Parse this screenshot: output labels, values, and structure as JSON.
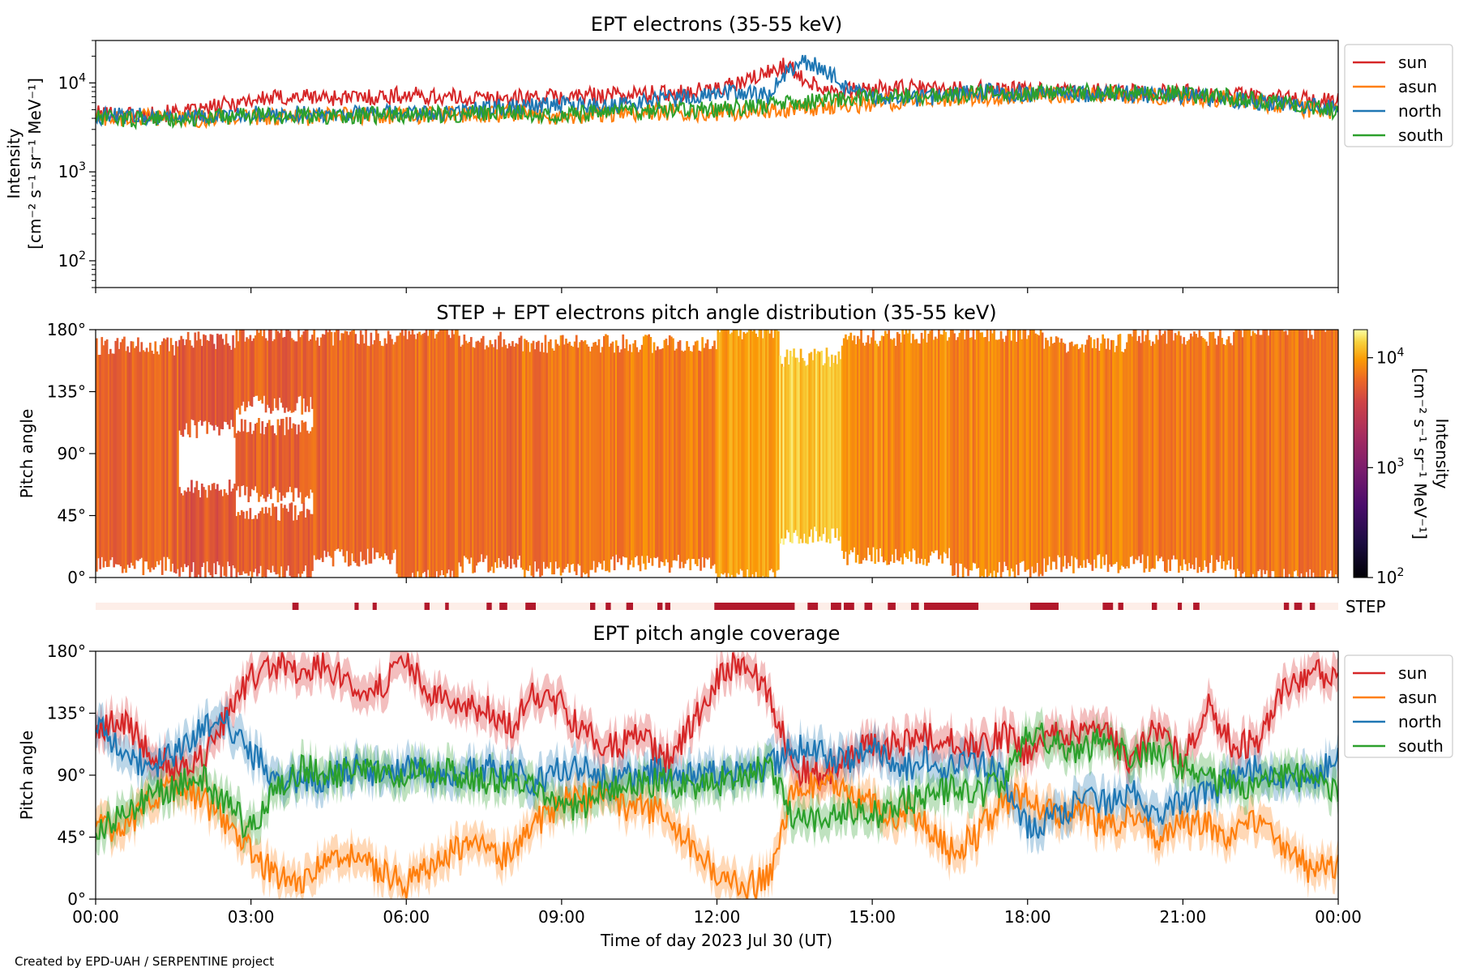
{
  "footer": {
    "credit": "Created by EPD-UAH / SERPENTINE project"
  },
  "colors": {
    "sun": "#d62728",
    "asun": "#ff7f0e",
    "north": "#1f77b4",
    "south": "#2ca02c",
    "step_bar": "#b2182b",
    "step_bg": "#fdeee8"
  },
  "chart_data": [
    {
      "type": "line",
      "title": "EPT electrons (35-55 keV)",
      "ylabel": "Intensity",
      "ylabel_units": "[cm⁻² s⁻¹ sr⁻¹ MeV⁻¹]",
      "yscale": "log",
      "ylim": [
        50,
        30000
      ],
      "y_ticks": [
        {
          "value": 100,
          "base": "10",
          "exp": "2"
        },
        {
          "value": 1000,
          "base": "10",
          "exp": "3"
        },
        {
          "value": 10000,
          "base": "10",
          "exp": "4"
        }
      ],
      "xlim_hours": [
        0,
        24
      ],
      "legend_position": "outside-right-top",
      "x_hours": [
        0,
        1,
        2,
        3,
        4,
        5,
        6,
        7,
        8,
        9,
        10,
        11,
        12,
        12.5,
        13,
        13.3,
        13.6,
        14,
        14.5,
        15,
        16,
        17,
        18,
        19,
        20,
        21,
        22,
        23,
        24
      ],
      "series": [
        {
          "name": "sun",
          "color_key": "sun",
          "values": [
            4500,
            4400,
            4800,
            6500,
            7000,
            6800,
            7300,
            6800,
            6700,
            7000,
            7400,
            7600,
            8500,
            10000,
            13000,
            16000,
            12000,
            9000,
            8000,
            8500,
            8700,
            8500,
            8200,
            8000,
            7800,
            7800,
            7200,
            6800,
            6200
          ]
        },
        {
          "name": "asun",
          "color_key": "asun",
          "values": [
            4000,
            4100,
            3900,
            4200,
            4100,
            4300,
            4300,
            4400,
            4500,
            4200,
            4500,
            4700,
            4600,
            4700,
            5000,
            5100,
            5200,
            5300,
            5600,
            5800,
            6500,
            7000,
            7300,
            7500,
            7300,
            7000,
            6500,
            5500,
            4500
          ]
        },
        {
          "name": "north",
          "color_key": "north",
          "values": [
            4200,
            4300,
            4000,
            4400,
            4500,
            4600,
            4500,
            4700,
            5500,
            5700,
            5500,
            6500,
            7500,
            8000,
            7000,
            12000,
            17000,
            15000,
            8500,
            6500,
            6800,
            8000,
            7500,
            7500,
            7500,
            7300,
            6500,
            5800,
            5000
          ]
        },
        {
          "name": "south",
          "color_key": "south",
          "values": [
            4000,
            3900,
            4100,
            4300,
            4200,
            4300,
            4400,
            4500,
            4600,
            4500,
            4700,
            4800,
            5000,
            5300,
            5500,
            5800,
            5900,
            6200,
            6800,
            6800,
            7200,
            7500,
            7800,
            7800,
            7800,
            7500,
            6800,
            6000,
            4800
          ]
        }
      ]
    },
    {
      "type": "heatmap",
      "title": "STEP + EPT electrons pitch angle distribution (35-55 keV)",
      "ylabel": "Pitch angle",
      "ylim": [
        0,
        180
      ],
      "y_ticks": [
        "0°",
        "45°",
        "90°",
        "135°",
        "180°"
      ],
      "y_tick_values": [
        0,
        45,
        90,
        135,
        180
      ],
      "colorbar": {
        "label": "Intensity",
        "label_units": "[cm⁻² s⁻¹ sr⁻¹ MeV⁻¹]",
        "scale": "log",
        "range": [
          100,
          18000
        ],
        "ticks": [
          {
            "value": 100,
            "base": "10",
            "exp": "2"
          },
          {
            "value": 1000,
            "base": "10",
            "exp": "3"
          },
          {
            "value": 10000,
            "base": "10",
            "exp": "4"
          }
        ],
        "colormap": "inferno"
      },
      "blocks": [
        {
          "start_hour": 0.0,
          "end_hour": 1.6,
          "base": 6000,
          "bands": [
            [
              8,
              168
            ]
          ]
        },
        {
          "start_hour": 1.6,
          "end_hour": 2.7,
          "base": 5200,
          "bands": [
            [
              5,
              65
            ],
            [
              108,
              172
            ]
          ]
        },
        {
          "start_hour": 2.7,
          "end_hour": 4.2,
          "base": 5800,
          "bands": [
            [
              60,
              110
            ],
            [
              125,
              178
            ],
            [
              2,
              48
            ]
          ]
        },
        {
          "start_hour": 4.2,
          "end_hour": 5.8,
          "base": 6000,
          "bands": [
            [
              15,
              175
            ]
          ]
        },
        {
          "start_hour": 5.8,
          "end_hour": 7.0,
          "base": 6500,
          "bands": [
            [
              0,
              180
            ]
          ]
        },
        {
          "start_hour": 7.0,
          "end_hour": 8.2,
          "base": 6500,
          "bands": [
            [
              10,
              172
            ]
          ]
        },
        {
          "start_hour": 8.2,
          "end_hour": 9.6,
          "base": 7000,
          "bands": [
            [
              5,
              170
            ]
          ]
        },
        {
          "start_hour": 9.6,
          "end_hour": 12.0,
          "base": 7500,
          "bands": [
            [
              10,
              170
            ]
          ]
        },
        {
          "start_hour": 12.0,
          "end_hour": 13.2,
          "base": 10000,
          "bands": [
            [
              0,
              180
            ]
          ]
        },
        {
          "start_hour": 13.2,
          "end_hour": 14.4,
          "base": 13000,
          "bands": [
            [
              30,
              160
            ]
          ]
        },
        {
          "start_hour": 14.4,
          "end_hour": 16.5,
          "base": 8500,
          "bands": [
            [
              15,
              175
            ]
          ]
        },
        {
          "start_hour": 16.5,
          "end_hour": 18.3,
          "base": 8000,
          "bands": [
            [
              5,
              178
            ]
          ]
        },
        {
          "start_hour": 18.3,
          "end_hour": 20.0,
          "base": 7800,
          "bands": [
            [
              10,
              170
            ]
          ]
        },
        {
          "start_hour": 20.0,
          "end_hour": 22.0,
          "base": 7500,
          "bands": [
            [
              10,
              175
            ]
          ]
        },
        {
          "start_hour": 22.0,
          "end_hour": 24.0,
          "base": 7000,
          "bands": [
            [
              0,
              180
            ]
          ]
        }
      ]
    },
    {
      "type": "bar",
      "label": "STEP",
      "description_of_marks": "STEP data availability intervals (hours of day)",
      "intervals_hours": [
        [
          3.8,
          3.92
        ],
        [
          5.0,
          5.08
        ],
        [
          5.35,
          5.43
        ],
        [
          6.35,
          6.45
        ],
        [
          6.75,
          6.82
        ],
        [
          7.55,
          7.65
        ],
        [
          7.8,
          7.95
        ],
        [
          8.3,
          8.5
        ],
        [
          9.55,
          9.65
        ],
        [
          9.85,
          9.95
        ],
        [
          10.25,
          10.38
        ],
        [
          10.85,
          10.95
        ],
        [
          11.0,
          11.1
        ],
        [
          11.95,
          12.6
        ],
        [
          12.35,
          13.5
        ],
        [
          13.75,
          13.95
        ],
        [
          14.2,
          14.4
        ],
        [
          14.45,
          14.65
        ],
        [
          14.85,
          15.0
        ],
        [
          15.3,
          15.45
        ],
        [
          15.75,
          15.9
        ],
        [
          16.0,
          17.0
        ],
        [
          16.85,
          17.05
        ],
        [
          18.05,
          18.6
        ],
        [
          19.45,
          19.65
        ],
        [
          19.75,
          19.85
        ],
        [
          20.4,
          20.5
        ],
        [
          20.9,
          20.98
        ],
        [
          21.2,
          21.32
        ],
        [
          22.95,
          23.05
        ],
        [
          23.15,
          23.3
        ],
        [
          23.45,
          23.55
        ]
      ]
    },
    {
      "type": "line",
      "title": "EPT pitch angle coverage",
      "ylabel": "Pitch angle",
      "ylim": [
        0,
        180
      ],
      "y_ticks": [
        "0°",
        "45°",
        "90°",
        "135°",
        "180°"
      ],
      "y_tick_values": [
        0,
        45,
        90,
        135,
        180
      ],
      "xlabel": "Time of day 2023 Jul 30 (UT)",
      "x_tick_labels": [
        "00:00",
        "03:00",
        "06:00",
        "09:00",
        "12:00",
        "15:00",
        "18:00",
        "21:00",
        "00:00"
      ],
      "x_tick_hours": [
        0,
        3,
        6,
        9,
        12,
        15,
        18,
        21,
        24
      ],
      "legend_position": "outside-right-top",
      "band_halfwidth_deg": 12,
      "x_hours": [
        0,
        0.5,
        1,
        1.5,
        2,
        2.5,
        3,
        3.5,
        4,
        4.5,
        5,
        5.5,
        6,
        6.5,
        7,
        7.5,
        8,
        8.5,
        9,
        9.5,
        10,
        10.5,
        11,
        11.5,
        12,
        12.5,
        13,
        13.5,
        14,
        14.5,
        15,
        15.5,
        16,
        16.5,
        17,
        17.5,
        18,
        18.5,
        19,
        19.5,
        20,
        20.5,
        21,
        21.5,
        22,
        22.5,
        23,
        23.5,
        24
      ],
      "series": [
        {
          "name": "sun",
          "color_key": "sun",
          "values": [
            120,
            130,
            110,
            95,
            100,
            130,
            160,
            170,
            165,
            170,
            150,
            155,
            170,
            150,
            135,
            140,
            125,
            150,
            140,
            120,
            110,
            120,
            100,
            125,
            160,
            175,
            150,
            95,
            90,
            100,
            115,
            110,
            120,
            115,
            110,
            120,
            105,
            125,
            120,
            120,
            100,
            125,
            100,
            140,
            110,
            115,
            155,
            165,
            160
          ]
        },
        {
          "name": "asun",
          "color_key": "asun",
          "values": [
            55,
            50,
            70,
            80,
            75,
            55,
            35,
            15,
            15,
            25,
            35,
            20,
            10,
            25,
            40,
            35,
            30,
            55,
            70,
            75,
            70,
            65,
            65,
            40,
            20,
            8,
            15,
            80,
            85,
            80,
            70,
            60,
            55,
            35,
            45,
            70,
            75,
            60,
            65,
            50,
            60,
            45,
            55,
            55,
            45,
            60,
            35,
            20,
            25
          ]
        },
        {
          "name": "north",
          "color_key": "north",
          "values": [
            125,
            110,
            95,
            105,
            120,
            130,
            105,
            90,
            85,
            90,
            95,
            90,
            95,
            90,
            90,
            95,
            95,
            85,
            95,
            95,
            85,
            90,
            95,
            90,
            90,
            90,
            95,
            110,
            105,
            100,
            110,
            95,
            100,
            95,
            100,
            90,
            50,
            60,
            70,
            70,
            80,
            60,
            70,
            75,
            90,
            95,
            90,
            90,
            100
          ]
        },
        {
          "name": "south",
          "color_key": "south",
          "values": [
            50,
            60,
            75,
            80,
            90,
            70,
            50,
            80,
            95,
            90,
            95,
            95,
            90,
            95,
            90,
            85,
            90,
            80,
            65,
            70,
            80,
            85,
            85,
            80,
            85,
            90,
            95,
            60,
            55,
            65,
            60,
            70,
            75,
            80,
            75,
            85,
            120,
            115,
            105,
            120,
            100,
            110,
            95,
            85,
            85,
            80,
            90,
            85,
            80
          ]
        }
      ]
    }
  ]
}
